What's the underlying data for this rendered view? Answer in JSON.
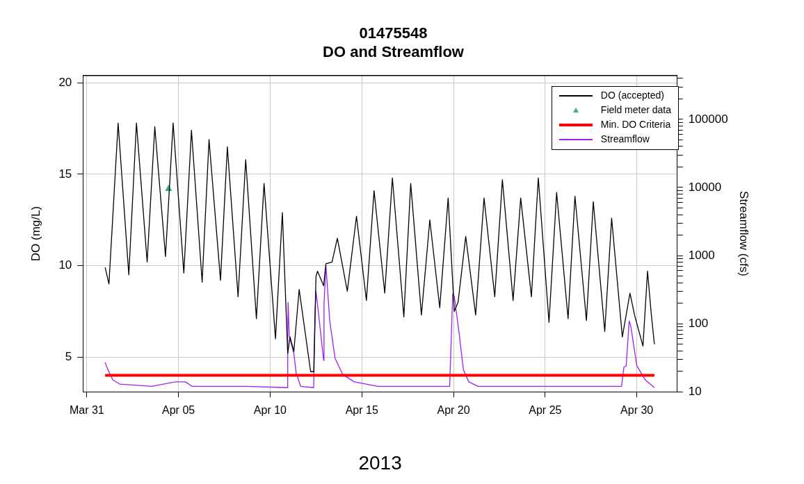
{
  "chart_data": {
    "type": "line",
    "title": "01475548",
    "subtitle": "DO and Streamflow",
    "xlabel": "2013",
    "ylabel": "DO (mg/L)",
    "y2label": "Streamflow (cfs)",
    "xlim": [
      "2013-03-30T19:00",
      "2013-05-02T05:00"
    ],
    "xticks": [
      {
        "value": "2013-03-31",
        "label": "Mar 31"
      },
      {
        "value": "2013-04-05",
        "label": "Apr 05"
      },
      {
        "value": "2013-04-10",
        "label": "Apr 10"
      },
      {
        "value": "2013-04-15",
        "label": "Apr 15"
      },
      {
        "value": "2013-04-20",
        "label": "Apr 20"
      },
      {
        "value": "2013-04-25",
        "label": "Apr 25"
      },
      {
        "value": "2013-04-30",
        "label": "Apr 30"
      }
    ],
    "ylim": [
      3.1,
      20.4
    ],
    "yticks": [
      5,
      10,
      15,
      20
    ],
    "y2lim": [
      10,
      440000
    ],
    "y2ticks": [
      10,
      {
        "value": 20,
        "label": null
      },
      {
        "value": 30,
        "label": null
      },
      {
        "value": 40,
        "label": null
      },
      {
        "value": 50,
        "label": null
      },
      {
        "value": 60,
        "label": null
      },
      {
        "value": 70,
        "label": null
      },
      {
        "value": 80,
        "label": null
      },
      {
        "value": 90,
        "label": null
      },
      100,
      {
        "value": 200,
        "label": null
      },
      {
        "value": 300,
        "label": null
      },
      {
        "value": 400,
        "label": null
      },
      {
        "value": 500,
        "label": null
      },
      {
        "value": 600,
        "label": null
      },
      {
        "value": 700,
        "label": null
      },
      {
        "value": 800,
        "label": null
      },
      {
        "value": 900,
        "label": null
      },
      1000,
      {
        "value": 2000,
        "label": null
      },
      {
        "value": 3000,
        "label": null
      },
      {
        "value": 4000,
        "label": null
      },
      {
        "value": 5000,
        "label": null
      },
      {
        "value": 6000,
        "label": null
      },
      {
        "value": 7000,
        "label": null
      },
      {
        "value": 8000,
        "label": null
      },
      {
        "value": 9000,
        "label": null
      },
      10000,
      {
        "value": 20000,
        "label": null
      },
      {
        "value": 30000,
        "label": null
      },
      {
        "value": 40000,
        "label": null
      },
      {
        "value": 50000,
        "label": null
      },
      {
        "value": 60000,
        "label": null
      },
      {
        "value": 70000,
        "label": null
      },
      {
        "value": 80000,
        "label": null
      },
      {
        "value": 90000,
        "label": null
      },
      100000,
      {
        "value": 200000,
        "label": null
      },
      {
        "value": 300000,
        "label": null
      },
      {
        "value": 400000,
        "label": null
      }
    ],
    "log": "y2",
    "grid": true,
    "legend": "top right",
    "series": [
      {
        "name": "DO (accepted)",
        "type": "line",
        "color": "#000000",
        "line_style": "solid",
        "marker": "none",
        "x": [
          "2013-04-01T00:00",
          "2013-04-01T05:00",
          "2013-04-01T17:00",
          "2013-04-02T07:00",
          "2013-04-02T17:00",
          "2013-04-03T07:00",
          "2013-04-03T17:00",
          "2013-04-04T07:00",
          "2013-04-04T17:00",
          "2013-04-05T07:00",
          "2013-04-05T17:00",
          "2013-04-06T07:00",
          "2013-04-06T16:00",
          "2013-04-07T07:00",
          "2013-04-07T16:00",
          "2013-04-08T06:00",
          "2013-04-08T16:00",
          "2013-04-09T06:00",
          "2013-04-09T16:00",
          "2013-04-10T07:00",
          "2013-04-10T16:00",
          "2013-04-10T23:00",
          "2013-04-11T02:00",
          "2013-04-11T07:00",
          "2013-04-11T14:00",
          "2013-04-12T05:00",
          "2013-04-12T09:00",
          "2013-04-12T12:00",
          "2013-04-12T14:00",
          "2013-04-12T22:00",
          "2013-04-13T01:00",
          "2013-04-13T09:00",
          "2013-04-13T16:00",
          "2013-04-14T05:00",
          "2013-04-14T17:00",
          "2013-04-15T06:00",
          "2013-04-15T16:00",
          "2013-04-16T06:00",
          "2013-04-16T16:00",
          "2013-04-17T07:00",
          "2013-04-17T16:00",
          "2013-04-18T06:00",
          "2013-04-18T17:00",
          "2013-04-19T06:00",
          "2013-04-19T17:00",
          "2013-04-20T01:00",
          "2013-04-20T06:00",
          "2013-04-20T16:00",
          "2013-04-21T05:00",
          "2013-04-21T16:00",
          "2013-04-22T06:00",
          "2013-04-22T16:00",
          "2013-04-23T06:00",
          "2013-04-23T16:00",
          "2013-04-24T06:00",
          "2013-04-24T15:00",
          "2013-04-25T05:00",
          "2013-04-25T15:00",
          "2013-04-26T06:00",
          "2013-04-26T15:00",
          "2013-04-27T06:00",
          "2013-04-27T15:00",
          "2013-04-28T06:00",
          "2013-04-28T15:00",
          "2013-04-29T05:00",
          "2013-04-29T15:00",
          "2013-04-29T21:00",
          "2013-04-30T08:00",
          "2013-04-30T14:00",
          "2013-04-30T19:00",
          "2013-04-30T23:00"
        ],
        "values": [
          9.9,
          9.0,
          17.8,
          9.5,
          17.8,
          10.2,
          17.6,
          10.5,
          17.8,
          9.6,
          17.4,
          9.1,
          16.9,
          9.2,
          16.5,
          8.3,
          15.8,
          7.1,
          14.5,
          6.0,
          12.9,
          5.2,
          6.1,
          5.3,
          8.7,
          4.2,
          4.2,
          9.4,
          9.7,
          8.9,
          10.1,
          10.2,
          11.5,
          8.6,
          12.7,
          8.1,
          14.1,
          8.5,
          14.8,
          7.2,
          14.5,
          7.3,
          12.5,
          7.7,
          13.7,
          7.5,
          8.0,
          11.6,
          7.3,
          13.7,
          8.3,
          14.7,
          8.1,
          13.7,
          8.3,
          14.8,
          6.9,
          14.0,
          7.1,
          13.8,
          7.0,
          13.5,
          6.4,
          12.6,
          6.1,
          8.5,
          7.3,
          5.6,
          9.7,
          7.3,
          5.7
        ]
      },
      {
        "name": "Field meter data",
        "type": "scatter",
        "color": "#3cb371",
        "marker": "triangle",
        "x": [
          "2013-04-04T11:00"
        ],
        "values": [
          14.2
        ]
      },
      {
        "name": "Min. DO Criteria",
        "type": "line",
        "color": "#ff0000",
        "line_style": "solid",
        "marker": "none",
        "x": [
          "2013-04-01T00:00",
          "2013-04-30T23:00"
        ],
        "values": [
          4,
          4
        ]
      },
      {
        "name": "Streamflow",
        "type": "line",
        "axis": "y2",
        "color": "#a020f0",
        "line_style": "solid",
        "marker": "none",
        "x": [
          "2013-04-01T00:00",
          "2013-04-01T03:00",
          "2013-04-01T10:00",
          "2013-04-01T19:00",
          "2013-04-03T13:00",
          "2013-04-04T20:00",
          "2013-04-05T09:00",
          "2013-04-05T18:00",
          "2013-04-08T18:00",
          "2013-04-10T22:30",
          "2013-04-10T23:00",
          "2013-04-10T23:30",
          "2013-04-11T01:00",
          "2013-04-11T07:00",
          "2013-04-11T10:00",
          "2013-04-11T16:00",
          "2013-04-12T09:00",
          "2013-04-12T11:00",
          "2013-04-12T12:00",
          "2013-04-12T15:00",
          "2013-04-12T22:00",
          "2013-04-12T22:30",
          "2013-04-13T01:00",
          "2013-04-13T06:00",
          "2013-04-13T13:00",
          "2013-04-13T23:00",
          "2013-04-14T14:00",
          "2013-04-15T21:00",
          "2013-04-16T04:00",
          "2013-04-19T10:00",
          "2013-04-19T19:00",
          "2013-04-19T23:00",
          "2013-04-20T01:00",
          "2013-04-20T07:00",
          "2013-04-20T13:00",
          "2013-04-20T20:00",
          "2013-04-21T08:00",
          "2013-04-29T04:00",
          "2013-04-29T07:00",
          "2013-04-29T10:00",
          "2013-04-29T14:00",
          "2013-04-29T16:00",
          "2013-04-30T00:00",
          "2013-04-30T11:00",
          "2013-04-30T23:00"
        ],
        "values": [
          27,
          22,
          15,
          13,
          12,
          14,
          14,
          12,
          12,
          11.5,
          66,
          205,
          66,
          37,
          19,
          12,
          11.5,
          153,
          299,
          153,
          29,
          196,
          716,
          110,
          31,
          18,
          14,
          12,
          12,
          12,
          12,
          274,
          252,
          78,
          21,
          14,
          12,
          12,
          23,
          24,
          110,
          93,
          24,
          15,
          11.5
        ]
      }
    ]
  }
}
